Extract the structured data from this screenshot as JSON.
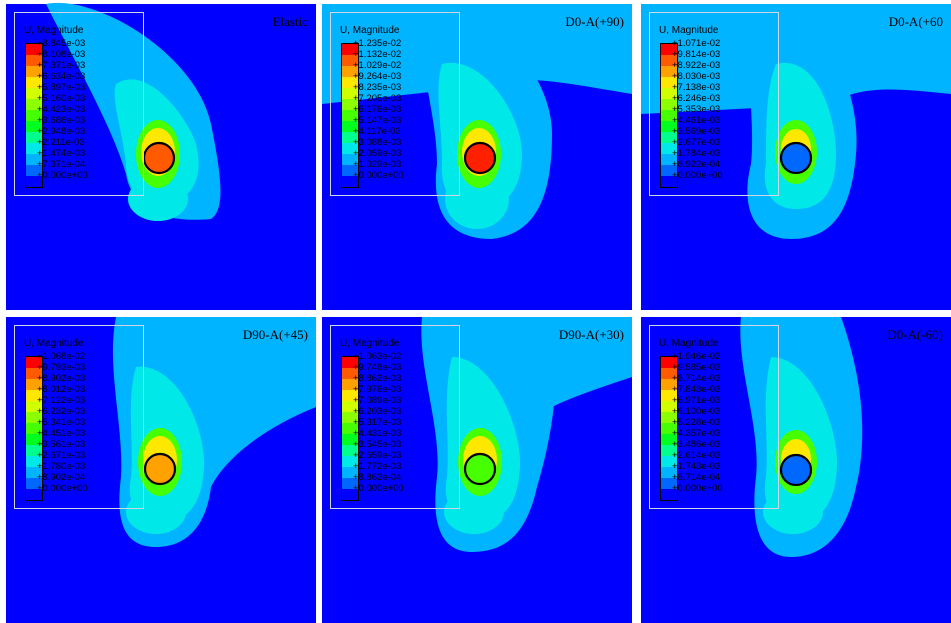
{
  "colormap": [
    "#ff0000",
    "#ff5a00",
    "#ffa200",
    "#ffe800",
    "#d2ff00",
    "#8cff00",
    "#46ff00",
    "#00ff1e",
    "#00ff8c",
    "#00e8e8",
    "#00b4ff",
    "#0068ff",
    "#0000ff"
  ],
  "panels": [
    {
      "title": "Elastic",
      "legend_title": "U, Magnitude",
      "values": [
        "+8.845e-03",
        "+8.108e-03",
        "+7.371e-03",
        "+6.634e-03",
        "+5.897e-03",
        "+5.160e-03",
        "+4.423e-03",
        "+3.686e-03",
        "+2.948e-03",
        "+2.211e-03",
        "+1.474e-03",
        "+7.371e-04",
        "+0.000e+00"
      ],
      "hole_fill": "#ff5a00"
    },
    {
      "title": "D0-A(+90)",
      "legend_title": "U, Magnitude",
      "values": [
        "+1.235e-02",
        "+1.132e-02",
        "+1.029e-02",
        "+9.264e-03",
        "+8.235e-03",
        "+7.205e-03",
        "+6.176e-03",
        "+5.147e-03",
        "+4.117e-03",
        "+3.088e-03",
        "+2.059e-03",
        "+1.029e-03",
        "+0.000e+00"
      ],
      "hole_fill": "#ff2000"
    },
    {
      "title": "D0-A(+60",
      "legend_title": "U, Magnitude",
      "values": [
        "+1.071e-02",
        "+9.814e-03",
        "+8.922e-03",
        "+8.030e-03",
        "+7.138e-03",
        "+6.246e-03",
        "+5.353e-03",
        "+4.461e-03",
        "+3.569e-03",
        "+2.677e-03",
        "+1.784e-03",
        "+8.922e-04",
        "+0.000e+00"
      ],
      "hole_fill": "#0068ff"
    },
    {
      "title": "D90-A(+45)",
      "legend_title": "U, Magnitude",
      "values": [
        "+1.068e-02",
        "+9.793e-03",
        "+8.902e-03",
        "+8.012e-03",
        "+7.122e-03",
        "+6.232e-03",
        "+5.341e-03",
        "+4.451e-03",
        "+3.561e-03",
        "+2.671e-03",
        "+1.780e-03",
        "+8.902e-04",
        "+0.000e+00"
      ],
      "hole_fill": "#ffa200"
    },
    {
      "title": "D90-A(+30)",
      "legend_title": "U, Magnitude",
      "values": [
        "+1.063e-02",
        "+9.748e-03",
        "+8.862e-03",
        "+7.976e-03",
        "+7.089e-03",
        "+6.203e-03",
        "+5.317e-03",
        "+4.431e-03",
        "+3.545e-03",
        "+2.659e-03",
        "+1.772e-03",
        "+8.862e-04",
        "+0.000e+00"
      ],
      "hole_fill": "#46ff00"
    },
    {
      "title": "D0-A(-60)",
      "legend_title": "U, Magnitude",
      "values": [
        "+1.046e-02",
        "+9.585e-03",
        "+8.714e-03",
        "+7.843e-03",
        "+6.971e-03",
        "+6.100e-03",
        "+5.228e-03",
        "+4.357e-03",
        "+3.486e-03",
        "+2.614e-03",
        "+1.743e-03",
        "+8.714e-04",
        "+0.000e+00"
      ],
      "hole_fill": "#0068ff"
    }
  ]
}
